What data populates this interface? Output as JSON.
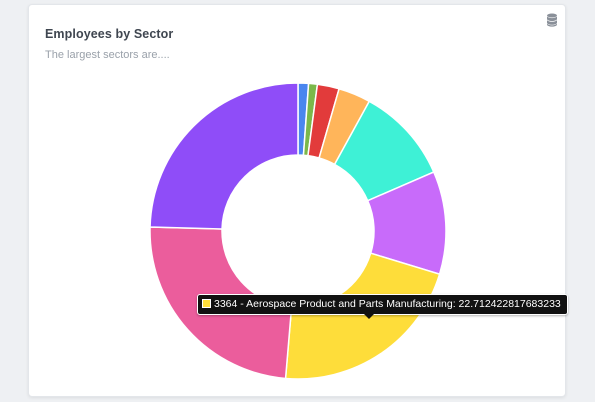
{
  "card": {
    "title": "Employees by Sector",
    "subtitle": "The largest sectors are...."
  },
  "toolbar": {
    "data_icon": "database-icon"
  },
  "chart_data": {
    "type": "pie",
    "variant": "doughnut",
    "title": "",
    "segments": [
      {
        "value": 1.2,
        "color": "#4a86ef"
      },
      {
        "value": 1.0,
        "color": "#7bb84a"
      },
      {
        "value": 2.5,
        "color": "#e23b3b"
      },
      {
        "value": 3.7,
        "color": "#ffb55a"
      },
      {
        "value": 11.0,
        "color": "#3ef1d6"
      },
      {
        "value": 11.8,
        "color": "#c86bfa"
      },
      {
        "value": 22.712422817683233,
        "color": "#fedd3a"
      },
      {
        "value": 25.3,
        "color": "#eb5d9c"
      },
      {
        "value": 25.8,
        "color": "#8f4df8"
      }
    ],
    "tooltip": {
      "text": "3364 - Aerospace Product and Parts Manufacturing: 22.712422817683233",
      "color": "#fedd3a"
    }
  }
}
